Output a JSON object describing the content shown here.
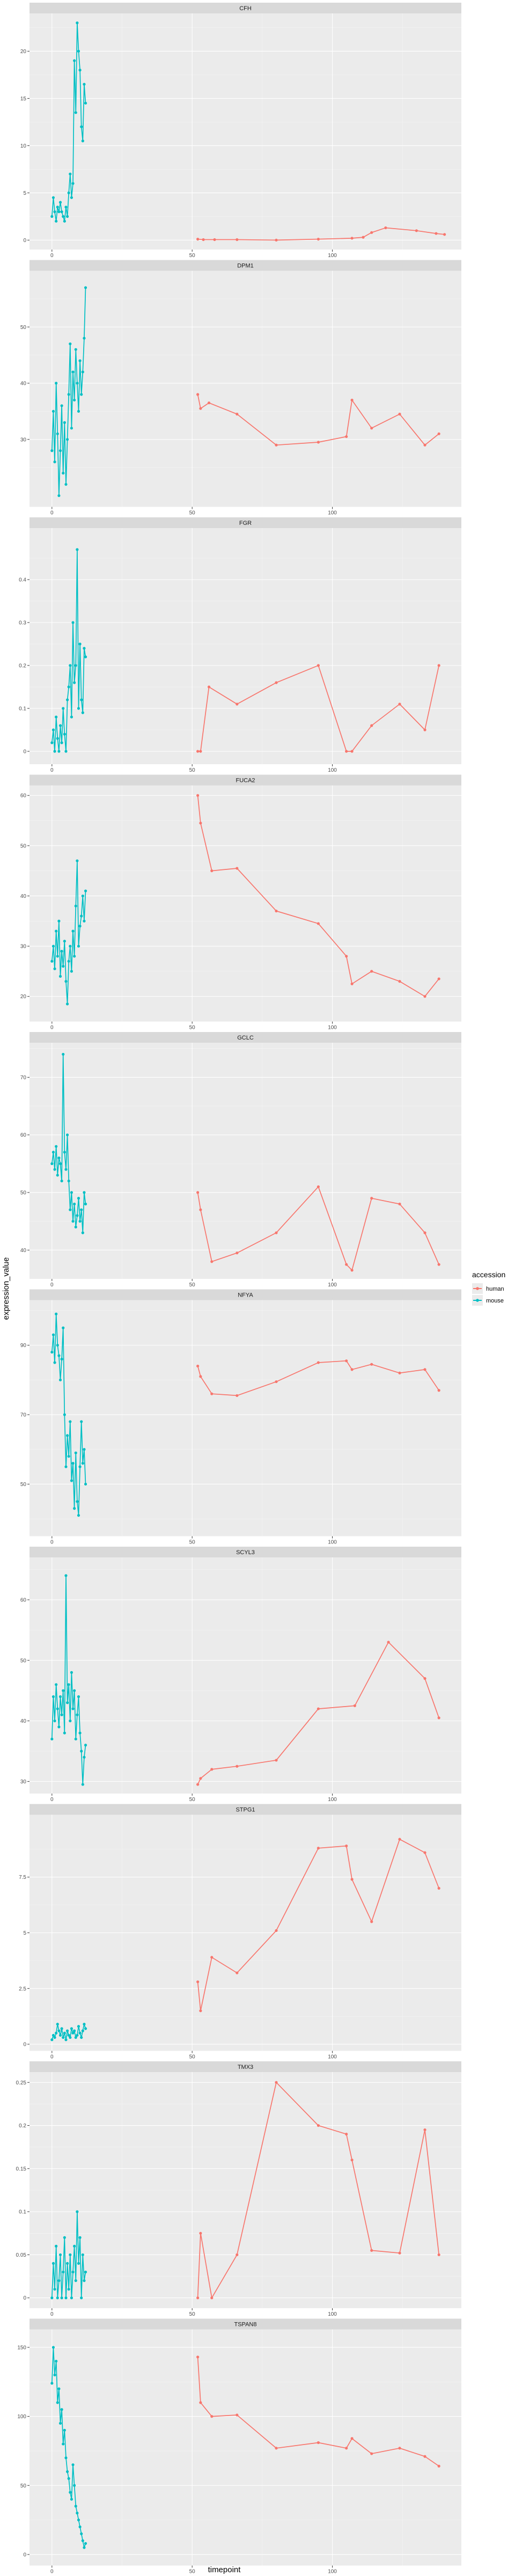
{
  "chart_data": {
    "type": "line",
    "facet_layout": "vertical",
    "xlabel": "timepoint",
    "ylabel": "expression_value",
    "xlim": [
      -8,
      146
    ],
    "x_ticks": [
      0,
      50,
      100
    ],
    "grid": true,
    "legend": {
      "title": "accession",
      "position": "right",
      "entries": [
        {
          "name": "human",
          "color": "#F8766D"
        },
        {
          "name": "mouse",
          "color": "#00BFC4"
        }
      ]
    },
    "panels": [
      {
        "title": "CFH",
        "ylim": [
          -1,
          24
        ],
        "y_ticks": [
          0,
          5,
          10,
          15,
          20
        ],
        "series": [
          {
            "name": "human",
            "x": [
              52,
              54,
              58,
              66,
              80,
              95,
              107,
              111,
              114,
              119,
              130,
              137,
              140
            ],
            "y": [
              0.1,
              0.05,
              0.05,
              0.05,
              0.0,
              0.1,
              0.2,
              0.3,
              0.8,
              1.3,
              1.0,
              0.7,
              0.6
            ]
          },
          {
            "name": "mouse",
            "x": [
              0,
              0.5,
              1,
              1.5,
              2,
              2.5,
              3,
              3.5,
              4,
              4.5,
              5,
              5.5,
              6,
              6.5,
              7,
              7.5,
              8,
              8.5,
              9,
              9.5,
              10,
              10.5,
              11,
              11.5,
              12
            ],
            "y": [
              2.5,
              4.5,
              3.0,
              2.0,
              3.5,
              3.0,
              4.0,
              3.0,
              2.5,
              2.0,
              3.5,
              2.5,
              5.0,
              7.0,
              4.5,
              6.0,
              19.0,
              13.5,
              23.0,
              20.0,
              18.0,
              12.0,
              10.5,
              16.5,
              14.5
            ]
          }
        ]
      },
      {
        "title": "DPM1",
        "ylim": [
          18,
          60
        ],
        "y_ticks": [
          30,
          40,
          50
        ],
        "series": [
          {
            "name": "human",
            "x": [
              52,
              53,
              56,
              66,
              80,
              95,
              105,
              107,
              114,
              124,
              133,
              138
            ],
            "y": [
              38.0,
              35.5,
              36.5,
              34.5,
              29.0,
              29.5,
              30.5,
              37.0,
              32.0,
              34.5,
              29.0,
              31.0
            ]
          },
          {
            "name": "mouse",
            "x": [
              0,
              0.5,
              1,
              1.5,
              2,
              2.5,
              3,
              3.5,
              4,
              4.5,
              5,
              5.5,
              6,
              6.5,
              7,
              7.5,
              8,
              8.5,
              9,
              9.5,
              10,
              10.5,
              11,
              11.5,
              12
            ],
            "y": [
              28.0,
              35.0,
              26.0,
              40.0,
              31.0,
              20.0,
              28.0,
              36.0,
              24.0,
              33.0,
              22.0,
              30.0,
              38.0,
              47.0,
              32.0,
              42.0,
              37.0,
              46.0,
              40.0,
              35.0,
              44.0,
              38.0,
              42.0,
              48.0,
              57.0
            ]
          }
        ]
      },
      {
        "title": "FGR",
        "ylim": [
          -0.03,
          0.52
        ],
        "y_ticks": [
          0.0,
          0.1,
          0.2,
          0.3,
          0.4
        ],
        "series": [
          {
            "name": "human",
            "x": [
              52,
              53,
              56,
              66,
              80,
              95,
              105,
              107,
              114,
              124,
              133,
              138
            ],
            "y": [
              0.0,
              0.0,
              0.15,
              0.11,
              0.16,
              0.2,
              0.0,
              0.0,
              0.06,
              0.11,
              0.05,
              0.2
            ]
          },
          {
            "name": "mouse",
            "x": [
              0,
              0.5,
              1,
              1.5,
              2,
              2.5,
              3,
              3.5,
              4,
              4.5,
              5,
              5.5,
              6,
              6.5,
              7,
              7.5,
              8,
              8.5,
              9,
              9.5,
              10,
              10.5,
              11,
              11.5,
              12
            ],
            "y": [
              0.02,
              0.05,
              0.0,
              0.08,
              0.03,
              0.0,
              0.06,
              0.02,
              0.1,
              0.04,
              0.0,
              0.12,
              0.15,
              0.2,
              0.08,
              0.3,
              0.16,
              0.2,
              0.47,
              0.1,
              0.25,
              0.12,
              0.09,
              0.24,
              0.22
            ]
          }
        ]
      },
      {
        "title": "FUCA2",
        "ylim": [
          15,
          62
        ],
        "y_ticks": [
          20,
          30,
          40,
          50,
          60
        ],
        "series": [
          {
            "name": "human",
            "x": [
              52,
              53,
              57,
              66,
              80,
              95,
              105,
              107,
              114,
              124,
              133,
              138
            ],
            "y": [
              60.0,
              54.5,
              45.0,
              45.5,
              37.0,
              34.5,
              28.0,
              22.5,
              25.0,
              23.0,
              20.0,
              23.5
            ]
          },
          {
            "name": "mouse",
            "x": [
              0,
              0.5,
              1,
              1.5,
              2,
              2.5,
              3,
              3.5,
              4,
              4.5,
              5,
              5.5,
              6,
              6.5,
              7,
              7.5,
              8,
              8.5,
              9,
              9.5,
              10,
              10.5,
              11,
              11.5,
              12
            ],
            "y": [
              27.0,
              30.0,
              25.5,
              33.0,
              28.0,
              35.0,
              24.0,
              29.0,
              26.0,
              31.0,
              23.0,
              18.5,
              27.0,
              30.0,
              25.0,
              33.0,
              28.0,
              38.0,
              47.0,
              30.0,
              34.0,
              36.0,
              40.0,
              35.0,
              41.0
            ]
          }
        ]
      },
      {
        "title": "GCLC",
        "ylim": [
          35,
          76
        ],
        "y_ticks": [
          40,
          50,
          60,
          70
        ],
        "series": [
          {
            "name": "human",
            "x": [
              52,
              53,
              57,
              66,
              80,
              95,
              105,
              107,
              114,
              124,
              133,
              138
            ],
            "y": [
              50.0,
              47.0,
              38.0,
              39.5,
              43.0,
              51.0,
              37.5,
              36.5,
              49.0,
              48.0,
              43.0,
              37.5
            ]
          },
          {
            "name": "mouse",
            "x": [
              0,
              0.5,
              1,
              1.5,
              2,
              2.5,
              3,
              3.5,
              4,
              4.5,
              5,
              5.5,
              6,
              6.5,
              7,
              7.5,
              8,
              8.5,
              9,
              9.5,
              10,
              10.5,
              11,
              11.5,
              12
            ],
            "y": [
              55.0,
              57.0,
              54.0,
              58.0,
              53.0,
              56.0,
              55.0,
              52.0,
              74.0,
              57.0,
              54.0,
              60.0,
              52.0,
              47.0,
              50.0,
              45.0,
              48.0,
              44.0,
              46.0,
              49.0,
              45.0,
              47.0,
              43.0,
              50.0,
              48.0
            ]
          }
        ]
      },
      {
        "title": "NFYA",
        "ylim": [
          35,
          103
        ],
        "y_ticks": [
          50,
          70,
          90
        ],
        "series": [
          {
            "name": "human",
            "x": [
              52,
              53,
              57,
              66,
              80,
              95,
              105,
              107,
              114,
              124,
              133,
              138
            ],
            "y": [
              84.0,
              81.0,
              76.0,
              75.5,
              79.5,
              85.0,
              85.5,
              83.0,
              84.5,
              82.0,
              83.0,
              77.0
            ]
          },
          {
            "name": "mouse",
            "x": [
              0,
              0.5,
              1,
              1.5,
              2,
              2.5,
              3,
              3.5,
              4,
              4.5,
              5,
              5.5,
              6,
              6.5,
              7,
              7.5,
              8,
              8.5,
              9,
              9.5,
              10,
              10.5,
              11,
              11.5,
              12
            ],
            "y": [
              88.0,
              93.0,
              85.0,
              99.0,
              90.0,
              87.0,
              80.0,
              86.0,
              95.0,
              70.0,
              55.0,
              64.0,
              58.0,
              68.0,
              51.0,
              56.0,
              43.0,
              59.0,
              45.0,
              41.0,
              55.0,
              68.0,
              56.0,
              60.0,
              50.0
            ]
          }
        ]
      },
      {
        "title": "SCYL3",
        "ylim": [
          28,
          67
        ],
        "y_ticks": [
          30,
          40,
          50,
          60
        ],
        "series": [
          {
            "name": "human",
            "x": [
              52,
              53,
              57,
              66,
              80,
              95,
              108,
              120,
              133,
              138
            ],
            "y": [
              29.5,
              30.5,
              32.0,
              32.5,
              33.5,
              42.0,
              42.5,
              53.0,
              47.0,
              40.5
            ]
          },
          {
            "name": "mouse",
            "x": [
              0,
              0.5,
              1,
              1.5,
              2,
              2.5,
              3,
              3.5,
              4,
              4.5,
              5,
              5.5,
              6,
              6.5,
              7,
              7.5,
              8,
              8.5,
              9,
              9.5,
              10,
              10.5,
              11,
              11.5,
              12
            ],
            "y": [
              37.0,
              44.0,
              40.0,
              46.0,
              42.0,
              39.0,
              44.0,
              41.0,
              45.0,
              38.0,
              64.0,
              43.0,
              46.0,
              40.0,
              48.0,
              42.0,
              45.0,
              37.0,
              41.0,
              44.0,
              38.0,
              35.0,
              29.5,
              34.0,
              36.0
            ]
          }
        ]
      },
      {
        "title": "STPG1",
        "ylim": [
          -0.3,
          10.3
        ],
        "y_ticks": [
          0.0,
          2.5,
          5.0,
          7.5
        ],
        "series": [
          {
            "name": "human",
            "x": [
              52,
              53,
              57,
              66,
              80,
              95,
              105,
              107,
              114,
              124,
              133,
              138
            ],
            "y": [
              2.8,
              1.5,
              3.9,
              3.2,
              5.1,
              8.8,
              8.9,
              7.4,
              5.5,
              9.2,
              8.6,
              7.0
            ]
          },
          {
            "name": "mouse",
            "x": [
              0,
              0.5,
              1,
              1.5,
              2,
              2.5,
              3,
              3.5,
              4,
              4.5,
              5,
              5.5,
              6,
              6.5,
              7,
              7.5,
              8,
              8.5,
              9,
              9.5,
              10,
              10.5,
              11,
              11.5,
              12
            ],
            "y": [
              0.2,
              0.4,
              0.3,
              0.5,
              0.9,
              0.6,
              0.4,
              0.7,
              0.3,
              0.5,
              0.2,
              0.6,
              0.4,
              0.3,
              0.7,
              0.5,
              0.6,
              0.3,
              0.4,
              0.8,
              0.5,
              0.3,
              0.6,
              0.9,
              0.7
            ]
          }
        ]
      },
      {
        "title": "TMX3",
        "ylim": [
          -0.012,
          0.262
        ],
        "y_ticks": [
          0.0,
          0.05,
          0.1,
          0.15,
          0.2,
          0.25
        ],
        "series": [
          {
            "name": "human",
            "x": [
              52,
              53,
              57,
              66,
              80,
              95,
              105,
              107,
              114,
              124,
              133,
              138
            ],
            "y": [
              0.0,
              0.075,
              0.0,
              0.05,
              0.25,
              0.2,
              0.19,
              0.16,
              0.055,
              0.052,
              0.195,
              0.05
            ]
          },
          {
            "name": "mouse",
            "x": [
              0,
              0.5,
              1,
              1.5,
              2,
              2.5,
              3,
              3.5,
              4,
              4.5,
              5,
              5.5,
              6,
              6.5,
              7,
              7.5,
              8,
              8.5,
              9,
              9.5,
              10,
              10.5,
              11,
              11.5,
              12
            ],
            "y": [
              0.0,
              0.04,
              0.01,
              0.06,
              0.0,
              0.02,
              0.05,
              0.0,
              0.03,
              0.07,
              0.0,
              0.04,
              0.01,
              0.05,
              0.0,
              0.03,
              0.06,
              0.02,
              0.1,
              0.04,
              0.07,
              0.0,
              0.05,
              0.02,
              0.03
            ]
          }
        ]
      },
      {
        "title": "TSPAN8",
        "ylim": [
          -8,
          163
        ],
        "y_ticks": [
          0,
          50,
          100,
          150
        ],
        "series": [
          {
            "name": "human",
            "x": [
              52,
              53,
              57,
              66,
              80,
              95,
              105,
              107,
              114,
              124,
              133,
              138
            ],
            "y": [
              143.0,
              110.0,
              100.0,
              101.0,
              77.0,
              81.0,
              77.0,
              84.0,
              73.0,
              77.0,
              71.0,
              64.0
            ]
          },
          {
            "name": "mouse",
            "x": [
              0,
              0.5,
              1,
              1.5,
              2,
              2.5,
              3,
              3.5,
              4,
              4.5,
              5,
              5.5,
              6,
              6.5,
              7,
              7.5,
              8,
              8.5,
              9,
              9.5,
              10,
              10.5,
              11,
              11.5,
              12
            ],
            "y": [
              124.0,
              150.0,
              130.0,
              140.0,
              110.0,
              120.0,
              95.0,
              105.0,
              80.0,
              90.0,
              70.0,
              60.0,
              55.0,
              45.0,
              40.0,
              65.0,
              50.0,
              35.0,
              30.0,
              25.0,
              20.0,
              15.0,
              10.0,
              5.0,
              8.0
            ]
          }
        ]
      }
    ]
  }
}
